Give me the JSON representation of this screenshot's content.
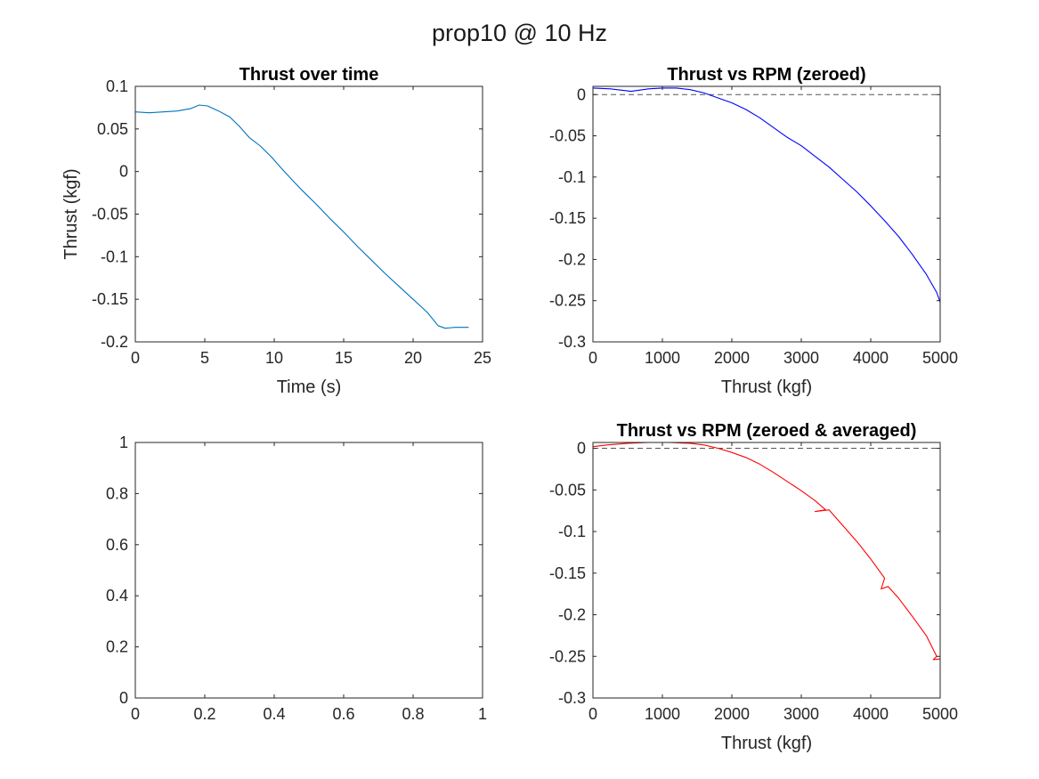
{
  "figure": {
    "title": "prop10 @ 10 Hz"
  },
  "chart_data": [
    {
      "type": "line",
      "title": "Thrust over time",
      "xlabel": "Time (s)",
      "ylabel": "Thrust (kgf)",
      "xlim": [
        0,
        25
      ],
      "ylim": [
        -0.2,
        0.1
      ],
      "xticks": [
        0,
        5,
        10,
        15,
        20,
        25
      ],
      "xtick_labels": [
        "0",
        "5",
        "10",
        "15",
        "20",
        "25"
      ],
      "yticks": [
        -0.2,
        -0.15,
        -0.1,
        -0.05,
        0,
        0.05,
        0.1
      ],
      "ytick_labels": [
        "-0.2",
        "-0.15",
        "-0.1",
        "-0.05",
        "0",
        "0.05",
        "0.1"
      ],
      "grid": false,
      "series": [
        {
          "color": "#0072BD",
          "x": [
            0,
            1,
            2,
            3,
            4,
            4.6,
            5.2,
            6,
            6.8,
            7.5,
            8.2,
            9,
            9.8,
            10.5,
            11.3,
            12,
            13,
            14,
            15,
            16,
            17,
            18,
            19,
            20,
            21,
            21.8,
            22.3,
            23,
            24
          ],
          "y": [
            0.07,
            0.069,
            0.07,
            0.071,
            0.074,
            0.078,
            0.077,
            0.071,
            0.064,
            0.053,
            0.04,
            0.03,
            0.017,
            0.004,
            -0.01,
            -0.022,
            -0.038,
            -0.055,
            -0.071,
            -0.088,
            -0.104,
            -0.12,
            -0.135,
            -0.15,
            -0.165,
            -0.181,
            -0.184,
            -0.183,
            -0.183
          ]
        }
      ]
    },
    {
      "type": "line",
      "title": "Thrust vs RPM (zeroed)",
      "xlabel": "Thrust (kgf)",
      "ylabel": "",
      "xlim": [
        0,
        5000
      ],
      "ylim": [
        -0.3,
        0.01
      ],
      "xticks": [
        0,
        1000,
        2000,
        3000,
        4000,
        5000
      ],
      "xtick_labels": [
        "0",
        "1000",
        "2000",
        "3000",
        "4000",
        "5000"
      ],
      "yticks": [
        -0.3,
        -0.25,
        -0.2,
        -0.15,
        -0.1,
        -0.05,
        0
      ],
      "ytick_labels": [
        "-0.3",
        "-0.25",
        "-0.2",
        "-0.15",
        "-0.1",
        "-0.05",
        "0"
      ],
      "grid": false,
      "reference_line": {
        "y": 0,
        "style": "dashed",
        "color": "#555555"
      },
      "series": [
        {
          "color": "#0000FF",
          "x": [
            0,
            250,
            550,
            800,
            1000,
            1200,
            1400,
            1600,
            1800,
            2000,
            2200,
            2400,
            2600,
            2800,
            3000,
            3200,
            3400,
            3600,
            3800,
            4000,
            4200,
            4400,
            4600,
            4800,
            4950,
            5000
          ],
          "y": [
            0.008,
            0.007,
            0.004,
            0.007,
            0.008,
            0.008,
            0.006,
            0.002,
            -0.004,
            -0.01,
            -0.018,
            -0.028,
            -0.04,
            -0.052,
            -0.062,
            -0.075,
            -0.088,
            -0.103,
            -0.118,
            -0.135,
            -0.153,
            -0.172,
            -0.194,
            -0.218,
            -0.24,
            -0.252
          ]
        }
      ]
    },
    {
      "type": "line",
      "title": "",
      "xlabel": "",
      "ylabel": "",
      "xlim": [
        0,
        1
      ],
      "ylim": [
        0,
        1
      ],
      "xticks": [
        0,
        0.2,
        0.4,
        0.6,
        0.8,
        1
      ],
      "xtick_labels": [
        "0",
        "0.2",
        "0.4",
        "0.6",
        "0.8",
        "1"
      ],
      "yticks": [
        0,
        0.2,
        0.4,
        0.6,
        0.8,
        1
      ],
      "ytick_labels": [
        "0",
        "0.2",
        "0.4",
        "0.6",
        "0.8",
        "1"
      ],
      "grid": false,
      "series": []
    },
    {
      "type": "line",
      "title": "Thrust vs RPM (zeroed & averaged)",
      "xlabel": "Thrust (kgf)",
      "ylabel": "",
      "xlim": [
        0,
        5000
      ],
      "ylim": [
        -0.3,
        0.007
      ],
      "xticks": [
        0,
        1000,
        2000,
        3000,
        4000,
        5000
      ],
      "xtick_labels": [
        "0",
        "1000",
        "2000",
        "3000",
        "4000",
        "5000"
      ],
      "yticks": [
        -0.3,
        -0.25,
        -0.2,
        -0.15,
        -0.1,
        -0.05,
        0
      ],
      "ytick_labels": [
        "-0.3",
        "-0.25",
        "-0.2",
        "-0.15",
        "-0.1",
        "-0.05",
        "0"
      ],
      "grid": false,
      "reference_line": {
        "y": 0,
        "style": "dashed",
        "color": "#555555"
      },
      "series": [
        {
          "color": "#FF0000",
          "x": [
            0,
            200,
            500,
            800,
            1100,
            1400,
            1600,
            1800,
            2000,
            2200,
            2400,
            2600,
            2800,
            3000,
            3200,
            3350,
            3200,
            3400,
            3600,
            3800,
            4000,
            4200,
            4150,
            4250,
            4400,
            4600,
            4800,
            4950,
            4900,
            5000
          ],
          "y": [
            0.002,
            0.004,
            0.006,
            0.007,
            0.007,
            0.006,
            0.004,
            0.0,
            -0.005,
            -0.011,
            -0.019,
            -0.029,
            -0.04,
            -0.051,
            -0.063,
            -0.074,
            -0.076,
            -0.074,
            -0.093,
            -0.112,
            -0.133,
            -0.156,
            -0.169,
            -0.166,
            -0.18,
            -0.202,
            -0.225,
            -0.25,
            -0.254,
            -0.253
          ]
        }
      ]
    }
  ]
}
